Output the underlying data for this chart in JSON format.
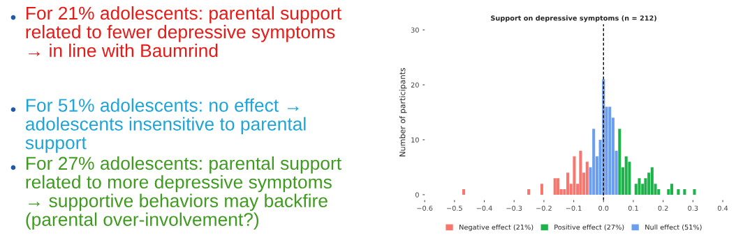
{
  "chart_data": {
    "type": "bar",
    "title": "Support on depressive symptoms (n = 212)",
    "ylabel": "Number of participants",
    "annotations": [
      "For 21% adolescents: parental support\nrelated to fewer depressive symptoms\n→ in line with Baumrind",
      "For 51% adolescents: no effect →\nadolescents insensitive to parental\nsupport",
      "For 27% adolescents: parental support\nrelated to more depressive symptoms\n→ supportive behaviors may backfire\n(parental over-involvement?)"
    ],
    "series": [
      {
        "name": "Negative effect (21%)",
        "color": "#f8766d",
        "x": [
          -0.469,
          -0.251,
          -0.207,
          -0.163,
          -0.153,
          -0.142,
          -0.131,
          -0.12,
          -0.109,
          -0.098,
          -0.087,
          -0.077,
          -0.066,
          -0.055
        ],
        "values": [
          1,
          1,
          2,
          3,
          3,
          1,
          1,
          4,
          2,
          7,
          2,
          8,
          4,
          6
        ]
      },
      {
        "name": "Positive effect (27%)",
        "color": "#1db34a",
        "x": [
          0.054,
          0.065,
          0.076,
          0.087,
          0.109,
          0.12,
          0.131,
          0.141,
          0.152,
          0.163,
          0.174,
          0.185,
          0.218,
          0.229,
          0.251,
          0.272,
          0.305
        ],
        "values": [
          12,
          5,
          7,
          6,
          2,
          3,
          2,
          3,
          4,
          5,
          2,
          1,
          1,
          2,
          1,
          1,
          1
        ]
      },
      {
        "name": "Null effect (51%)",
        "color": "#6a9ef0",
        "x": [
          -0.044,
          -0.033,
          -0.022,
          -0.011,
          0.0,
          0.01,
          0.021,
          0.032,
          0.043
        ],
        "values": [
          5,
          12,
          7,
          10,
          21,
          16,
          16,
          14,
          8
        ]
      }
    ],
    "xlim": [
      -0.6,
      0.4
    ],
    "xticks": [
      {
        "value": -0.6,
        "label": "−0.6"
      },
      {
        "value": -0.5,
        "label": "−0.5"
      },
      {
        "value": -0.4,
        "label": "−0.4"
      },
      {
        "value": -0.3,
        "label": "−0.3"
      },
      {
        "value": -0.2,
        "label": "−0.2"
      },
      {
        "value": -0.1,
        "label": "−0.1"
      },
      {
        "value": 0.0,
        "label": "0.0"
      },
      0.1,
      0.2,
      0.3,
      0.4
    ],
    "ylim": [
      -1,
      31
    ],
    "yticks": [
      0,
      10,
      20,
      30
    ],
    "ref_lines": [
      {
        "axis": "x",
        "value": 0,
        "line_style": "dashed",
        "color": "#000000"
      }
    ],
    "grid": false,
    "legend": "bottom"
  }
}
